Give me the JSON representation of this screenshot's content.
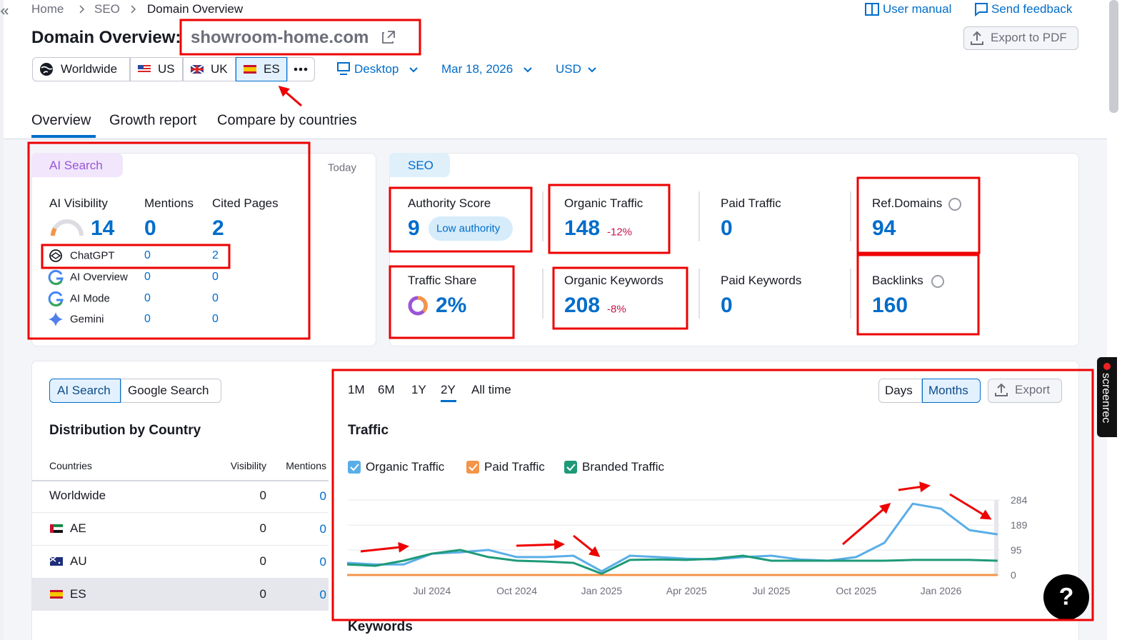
{
  "breadcrumb": [
    "Home",
    "SEO",
    "Domain Overview"
  ],
  "header": {
    "title": "Domain Overview:",
    "domain": "showroom-home.com",
    "user_manual": "User manual",
    "send_feedback": "Send feedback",
    "export_pdf": "Export to PDF"
  },
  "filters": {
    "regions": [
      "Worldwide",
      "US",
      "UK",
      "ES"
    ],
    "device": "Desktop",
    "date": "Mar 18, 2026",
    "currency": "USD"
  },
  "tabs": [
    "Overview",
    "Growth report",
    "Compare by countries"
  ],
  "ai_search": {
    "label": "AI Search",
    "period": "Today",
    "metrics": [
      {
        "label": "AI Visibility",
        "value": 14
      },
      {
        "label": "Mentions",
        "value": 0
      },
      {
        "label": "Cited Pages",
        "value": 2
      }
    ],
    "platforms": [
      {
        "name": "ChatGPT",
        "mentions": 0,
        "cited_pages": 2
      },
      {
        "name": "AI Overview",
        "mentions": 0,
        "cited_pages": 0
      },
      {
        "name": "AI Mode",
        "mentions": 0,
        "cited_pages": 0
      },
      {
        "name": "Gemini",
        "mentions": 0,
        "cited_pages": 0
      }
    ]
  },
  "seo": {
    "label": "SEO",
    "metrics": [
      {
        "label": "Authority Score",
        "value": 9,
        "badge": "Low authority"
      },
      {
        "label": "Organic Traffic",
        "value": 148,
        "change": "-12%"
      },
      {
        "label": "Paid Traffic",
        "value": 0
      },
      {
        "label": "Ref.Domains",
        "value": 94
      },
      {
        "label": "Traffic Share",
        "value": "2%"
      },
      {
        "label": "Organic Keywords",
        "value": 208,
        "change": "-8%"
      },
      {
        "label": "Paid Keywords",
        "value": 0
      },
      {
        "label": "Backlinks",
        "value": 160
      }
    ]
  },
  "distribution": {
    "toggle": [
      "AI Search",
      "Google Search"
    ],
    "title": "Distribution by Country",
    "columns": [
      "Countries",
      "Visibility",
      "Mentions"
    ],
    "rows": [
      [
        "Worldwide",
        0,
        0
      ],
      [
        "AE",
        0,
        0
      ],
      [
        "AU",
        0,
        0
      ],
      [
        "ES",
        0,
        0
      ]
    ]
  },
  "traffic": {
    "ranges": [
      "1M",
      "6M",
      "1Y",
      "2Y",
      "All time"
    ],
    "granularity": [
      "Days",
      "Months"
    ],
    "export": "Export",
    "title": "Traffic",
    "chart": {
      "type": "line",
      "categories": [
        null,
        null,
        null,
        "Jul 2024",
        null,
        null,
        "Oct 2024",
        null,
        null,
        "Jan 2025",
        null,
        null,
        "Apr 2025",
        null,
        null,
        "Jul 2025",
        null,
        null,
        "Oct 2025",
        null,
        null,
        "Jan 2026",
        null,
        null
      ],
      "series": [
        {
          "name": "Organic Traffic",
          "color": "#5aaee8",
          "values": [
            46,
            40,
            40,
            81,
            86,
            95,
            68,
            68,
            73,
            14,
            73,
            68,
            62,
            59,
            68,
            73,
            59,
            54,
            68,
            122,
            270,
            251,
            170,
            154
          ]
        },
        {
          "name": "Paid Traffic",
          "color": "#f3954a",
          "values": [
            0,
            0,
            0,
            0,
            0,
            0,
            0,
            0,
            0,
            0,
            0,
            0,
            0,
            0,
            0,
            0,
            0,
            0,
            0,
            0,
            0,
            0,
            0,
            0
          ]
        },
        {
          "name": "Branded Traffic",
          "color": "#1e9a78",
          "values": [
            40,
            35,
            54,
            81,
            95,
            68,
            54,
            51,
            46,
            5,
            57,
            59,
            57,
            62,
            73,
            54,
            54,
            54,
            54,
            54,
            57,
            57,
            57,
            54
          ]
        }
      ],
      "ylim": [
        0,
        284
      ],
      "yticks": [
        0,
        95,
        189,
        284
      ],
      "grid": true
    }
  },
  "next_section": "Keywords",
  "help": "?",
  "screenrec": "screenrec"
}
